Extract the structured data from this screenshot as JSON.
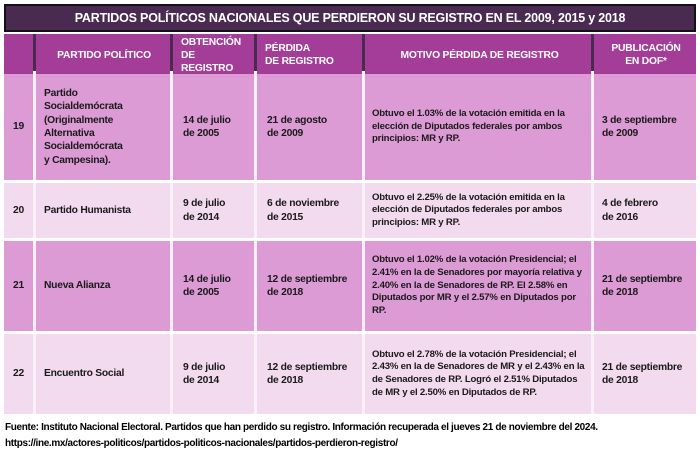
{
  "title": "PARTIDOS POLÍTICOS NACIONALES QUE PERDIERON SU REGISTRO EN EL 2009, 2015 y 2018",
  "columns": {
    "num": "",
    "partido": "PARTIDO POLÍTICO",
    "obtencion": "OBTENCIÓN\nDE REGISTRO",
    "perdida": "PÉRDIDA\nDE REGISTRO",
    "motivo": "MOTIVO PÉRDIDA DE REGISTRO",
    "dof": "PUBLICACIÓN\nEN DOF*"
  },
  "rows": [
    {
      "num": "19",
      "partido": "Partido\nSocialdemócrata\n(Originalmente\nAlternativa\nSocialdemócrata\ny Campesina).",
      "obtencion": "14 de julio\nde 2005",
      "perdida": "21 de agosto\nde 2009",
      "motivo": "Obtuvo el 1.03% de la votación emitida en la elección de Diputados federales por ambos principios: MR y RP.",
      "dof": "3 de septiembre\nde 2009"
    },
    {
      "num": "20",
      "partido": "Partido Humanista",
      "obtencion": "9 de julio\nde 2014",
      "perdida": "6 de noviembre\nde 2015",
      "motivo": "Obtuvo el 2.25% de la votación emitida en la elección de Diputados federales por ambos principios: MR y RP.",
      "dof": "4 de febrero\nde 2016"
    },
    {
      "num": "21",
      "partido": "Nueva Alianza",
      "obtencion": "14 de julio\nde 2005",
      "perdida": "12 de septiembre\nde 2018",
      "motivo": "Obtuvo el 1.02% de la votación Presidencial; el 2.41% en la de Senadores por mayoría relativa y 2.40% en la de Senadores de RP. El 2.58% en Diputados por MR y el 2.57% en Diputados por RP.",
      "dof": "21 de septiembre\nde 2018"
    },
    {
      "num": "22",
      "partido": "Encuentro Social",
      "obtencion": "9 de julio\nde 2014",
      "perdida": "12 de septiembre\nde 2018",
      "motivo": "Obtuvo el 2.78% de la votación Presidencial; el 2.43% en la de Senadores de MR y el 2.43% en la de Senadores de RP. Logró el 2.51% Diputados de MR y el 2.50% en Diputados de RP.",
      "dof": "21 de septiembre\nde 2018"
    }
  ],
  "footer": {
    "source": "Fuente: Instituto Nacional Electoral. Partidos que han perdido su registro. Información recuperada el jueves 21 de noviembre del 2024.",
    "url": "https://ine.mx/actores-politicos/partidos-politicos-nacionales/partidos-perdieron-registro/"
  },
  "colors": {
    "title_bg": "#4b2a52",
    "header_bg": "#a33d97",
    "row_dark": "#dc9bd4",
    "row_light": "#f2dbee",
    "gap": "#faf1f8",
    "text": "#1a1a1a"
  }
}
